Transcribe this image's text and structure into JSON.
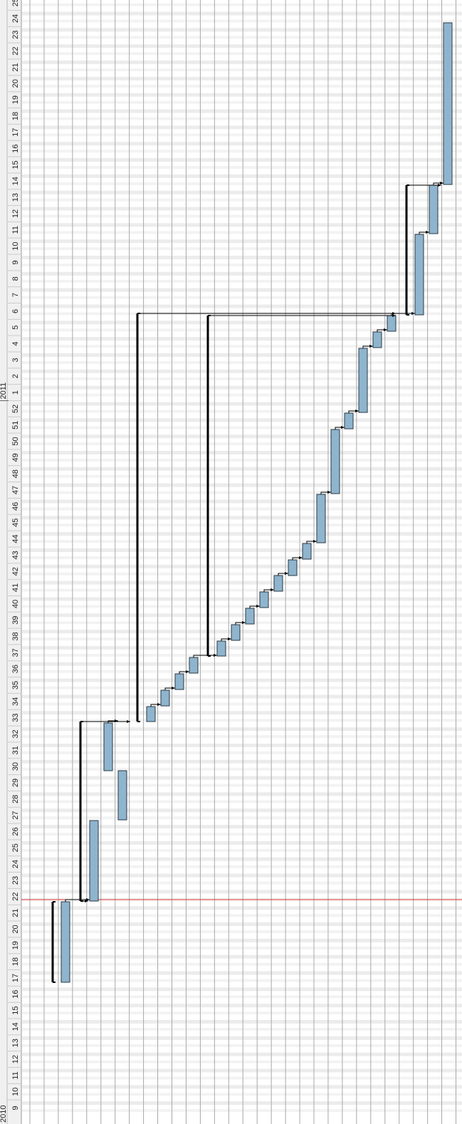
{
  "timescale": {
    "years": [
      "2010",
      "2011"
    ],
    "weeks": [
      "9",
      "10",
      "11",
      "12",
      "13",
      "14",
      "15",
      "16",
      "17",
      "18",
      "19",
      "20",
      "21",
      "22",
      "23",
      "24",
      "25",
      "26",
      "27",
      "28",
      "29",
      "30",
      "31",
      "32",
      "33",
      "34",
      "35",
      "36",
      "37",
      "38",
      "39",
      "40",
      "41",
      "42",
      "43",
      "44",
      "45",
      "46",
      "47",
      "48",
      "49",
      "50",
      "51",
      "52",
      "1",
      "2",
      "3",
      "4",
      "5",
      "6",
      "7",
      "8",
      "9",
      "10",
      "11",
      "12",
      "13",
      "14",
      "15",
      "16",
      "17",
      "18",
      "19",
      "20",
      "21",
      "22",
      "23",
      "24",
      "25"
    ]
  }
}
